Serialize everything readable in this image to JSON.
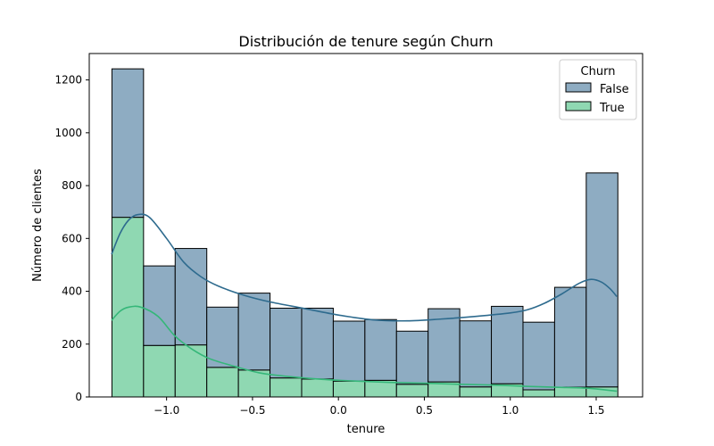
{
  "chart_data": {
    "type": "histogram",
    "title": "Distribución de tenure según Churn",
    "xlabel": "tenure",
    "ylabel": "Número de clientes",
    "xlim": [
      -1.45,
      1.77
    ],
    "ylim": [
      0,
      1300
    ],
    "xticks": [
      -1.0,
      -0.5,
      0.0,
      0.5,
      1.0,
      1.5
    ],
    "xtick_labels": [
      "−1.0",
      "−0.5",
      "0.0",
      "0.5",
      "1.0",
      "1.5"
    ],
    "yticks": [
      0,
      200,
      400,
      600,
      800,
      1000,
      1200
    ],
    "ytick_labels": [
      "0",
      "200",
      "400",
      "600",
      "800",
      "1000",
      "1200"
    ],
    "stacked": true,
    "grid": false,
    "legend": {
      "title": "Churn",
      "position": "upper right"
    },
    "bin_edges": [
      -1.318,
      -1.134,
      -0.95,
      -0.766,
      -0.582,
      -0.398,
      -0.214,
      -0.03,
      0.154,
      0.338,
      0.522,
      0.706,
      0.89,
      1.074,
      1.258,
      1.442,
      1.626
    ],
    "series": [
      {
        "name": "True",
        "color": "#8fd8b2",
        "kde_color": "#35b779",
        "counts": [
          680,
          195,
          197,
          112,
          102,
          72,
          68,
          60,
          63,
          48,
          57,
          38,
          50,
          27,
          37,
          38
        ],
        "kde": {
          "x": [
            -1.32,
            -1.27,
            -1.22,
            -1.15,
            -1.05,
            -0.95,
            -0.85,
            -0.75,
            -0.6,
            -0.45,
            -0.3,
            -0.1,
            0.1,
            0.3,
            0.5,
            0.7,
            0.9,
            1.1,
            1.3,
            1.45,
            1.62
          ],
          "y": [
            290,
            325,
            340,
            340,
            305,
            230,
            180,
            145,
            115,
            90,
            78,
            67,
            60,
            55,
            52,
            48,
            45,
            40,
            36,
            33,
            22
          ]
        }
      },
      {
        "name": "False",
        "color": "#8eacc2",
        "kde_color": "#2e6b8e",
        "counts": [
          562,
          301,
          365,
          228,
          291,
          264,
          268,
          227,
          230,
          201,
          277,
          250,
          293,
          256,
          378,
          810
        ],
        "kde": {
          "x": [
            -1.32,
            -1.27,
            -1.22,
            -1.17,
            -1.1,
            -1.0,
            -0.9,
            -0.8,
            -0.7,
            -0.55,
            -0.4,
            -0.2,
            0.0,
            0.2,
            0.4,
            0.6,
            0.8,
            1.0,
            1.1,
            1.2,
            1.3,
            1.4,
            1.47,
            1.53,
            1.58,
            1.62
          ],
          "y": [
            540,
            620,
            670,
            690,
            680,
            600,
            510,
            455,
            420,
            385,
            360,
            335,
            310,
            292,
            288,
            295,
            305,
            318,
            330,
            355,
            390,
            430,
            445,
            435,
            410,
            380
          ]
        }
      }
    ]
  }
}
